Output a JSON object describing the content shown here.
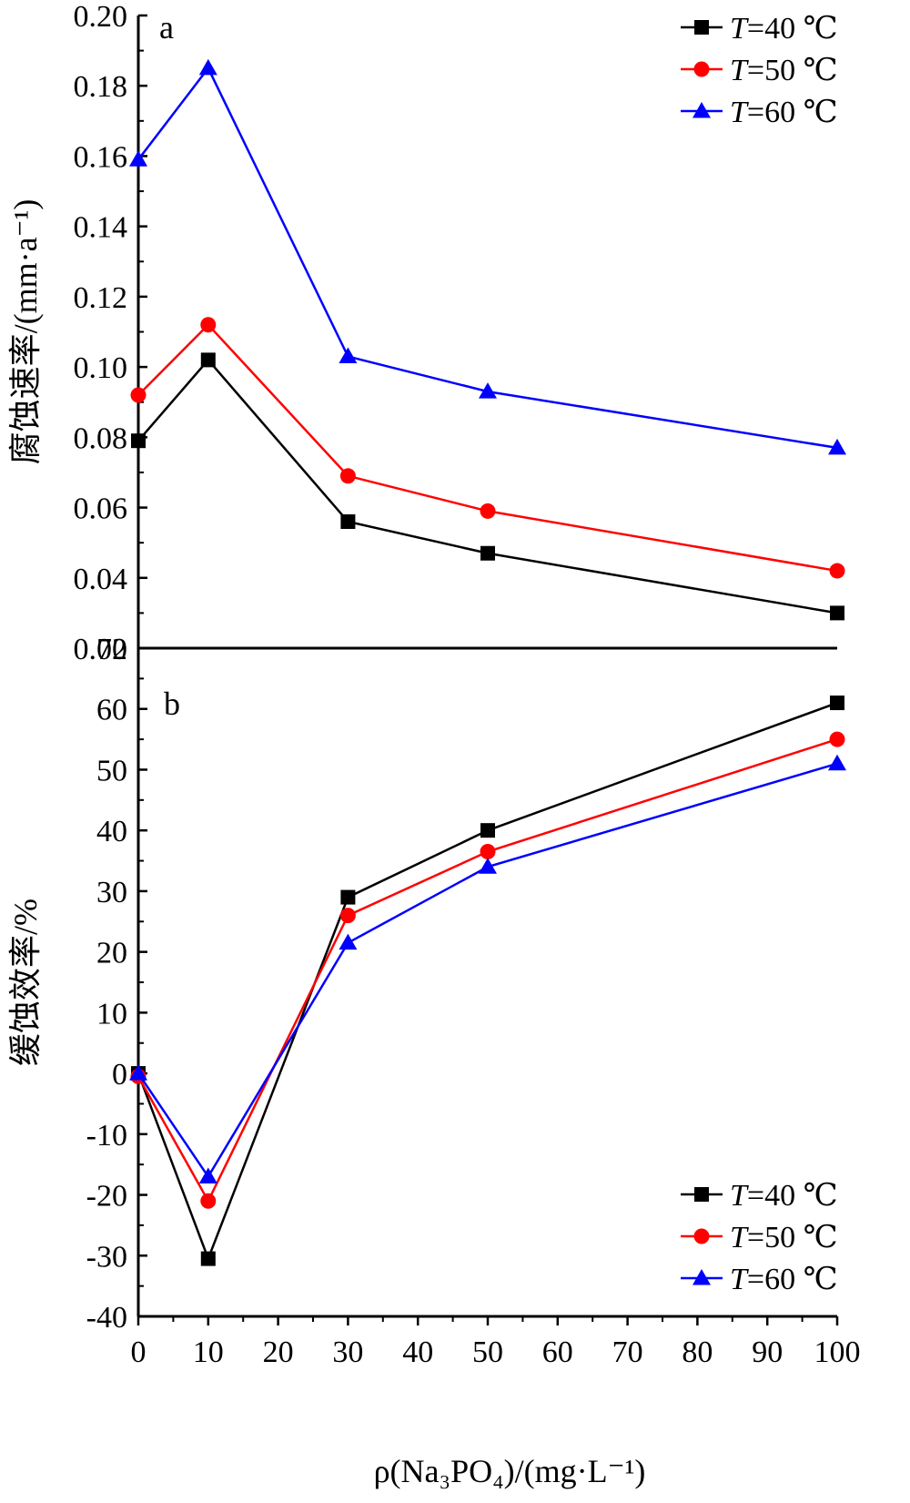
{
  "x_axis_label": "ρ(Na₃PO₄)/(mg·L⁻¹)",
  "chart_data": [
    {
      "type": "line",
      "panel": "a",
      "ylabel": "腐蚀速率/(mm·a⁻¹)",
      "xlabel": "ρ(Na₃PO₄)/(mg·L⁻¹)",
      "x_ticks": [
        "0",
        "10",
        "20",
        "30",
        "40",
        "50",
        "60",
        "70",
        "80",
        "90",
        "100"
      ],
      "y_ticks": [
        "0.02",
        "0.04",
        "0.06",
        "0.08",
        "0.10",
        "0.12",
        "0.14",
        "0.16",
        "0.18",
        "0.20"
      ],
      "xlim": [
        0,
        100
      ],
      "ylim": [
        0.02,
        0.2
      ],
      "x": [
        0,
        10,
        30,
        50,
        100
      ],
      "legend_position": "top-right",
      "series": [
        {
          "name": "T=40 ℃",
          "values": [
            0.079,
            0.102,
            0.056,
            0.047,
            0.03
          ],
          "color": "#000000",
          "marker": "square"
        },
        {
          "name": "T=50 ℃",
          "values": [
            0.092,
            0.112,
            0.069,
            0.059,
            0.042
          ],
          "color": "#ff0000",
          "marker": "circle"
        },
        {
          "name": "T=60 ℃",
          "values": [
            0.159,
            0.185,
            0.103,
            0.093,
            0.077
          ],
          "color": "#0000ff",
          "marker": "triangle"
        }
      ]
    },
    {
      "type": "line",
      "panel": "b",
      "ylabel": "缓蚀效率/%",
      "xlabel": "ρ(Na₃PO₄)/(mg·L⁻¹)",
      "x_ticks": [
        "0",
        "10",
        "20",
        "30",
        "40",
        "50",
        "60",
        "70",
        "80",
        "90",
        "100"
      ],
      "y_ticks": [
        "-40",
        "-30",
        "-20",
        "-10",
        "0",
        "10",
        "20",
        "30",
        "40",
        "50",
        "60",
        "70"
      ],
      "xlim": [
        0,
        100
      ],
      "ylim": [
        -40,
        70
      ],
      "x": [
        0,
        10,
        30,
        50,
        100
      ],
      "legend_position": "bottom-right",
      "series": [
        {
          "name": "T=40 ℃",
          "values": [
            0,
            -30.5,
            29,
            40,
            61
          ],
          "color": "#000000",
          "marker": "square"
        },
        {
          "name": "T=50 ℃",
          "values": [
            -0.5,
            -21,
            26,
            36.5,
            55
          ],
          "color": "#ff0000",
          "marker": "circle"
        },
        {
          "name": "T=60 ℃",
          "values": [
            0,
            -17,
            21.5,
            34,
            51
          ],
          "color": "#0000ff",
          "marker": "triangle"
        }
      ]
    }
  ]
}
